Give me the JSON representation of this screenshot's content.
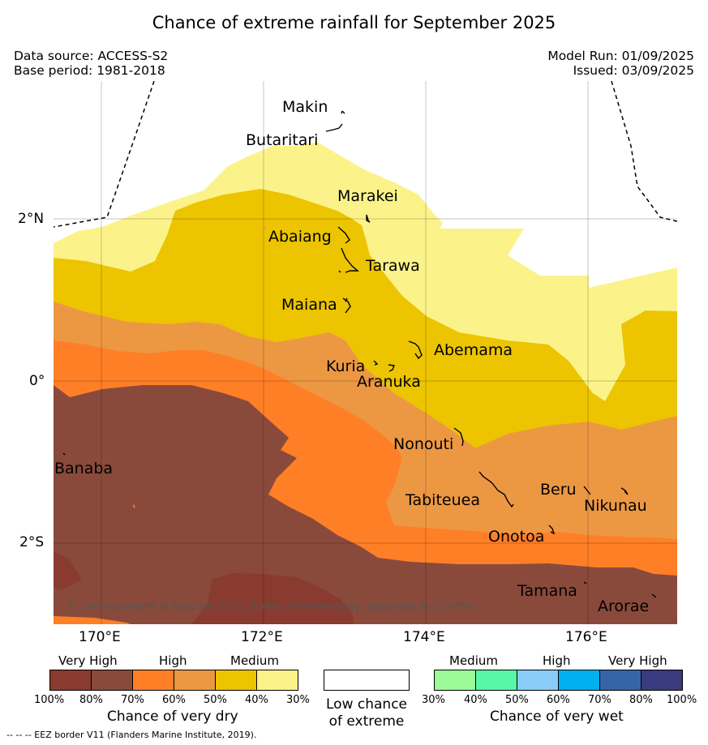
{
  "title": "Chance of extreme rainfall for September 2025",
  "data_source": "Data source: ACCESS-S2",
  "base_period": "Base period: 1981-2018",
  "model_run": "Model Run: 01/09/2025",
  "issued": "Issued: 03/09/2025",
  "map": {
    "lat_labels": [
      "2°N",
      "0°",
      "2°S"
    ],
    "lon_labels": [
      "170°E",
      "172°E",
      "174°E",
      "176°E"
    ],
    "places": [
      "Makin",
      "Butaritari",
      "Marakei",
      "Abaiang",
      "Tarawa",
      "Maiana",
      "Abemama",
      "Kuria",
      "Aranuka",
      "Nonouti",
      "Banaba",
      "Tabiteuea",
      "Beru",
      "Nikunau",
      "Onotoa",
      "Tamana",
      "Arorae"
    ],
    "copyright": "© Commonwealth of Australia 2025, Bureau of Meteorology, supported by COSPPac"
  },
  "legend": {
    "dry": {
      "headers": [
        "Very High",
        "High",
        "Medium"
      ],
      "colors": [
        "#8a3b2f",
        "#8a4a3b",
        "#ff7f27",
        "#ec9843",
        "#ecc400",
        "#fbf38a"
      ],
      "ticks": [
        "100%",
        "80%",
        "70%",
        "60%",
        "50%",
        "40%",
        "30%"
      ],
      "title": "Chance of very dry"
    },
    "neutral": {
      "color": "#ffffff",
      "title_line1": "Low chance",
      "title_line2": "of extreme"
    },
    "wet": {
      "headers": [
        "Medium",
        "High",
        "Very High"
      ],
      "colors": [
        "#9cfa97",
        "#57f7a7",
        "#89ccf8",
        "#00b0ef",
        "#3565a6",
        "#393b7e"
      ],
      "ticks": [
        "30%",
        "40%",
        "50%",
        "60%",
        "70%",
        "80%",
        "100%"
      ],
      "title": "Chance of very wet"
    }
  },
  "footnote": "--  --  -- EEZ border V11 (Flanders Marine Institute, 2019)."
}
